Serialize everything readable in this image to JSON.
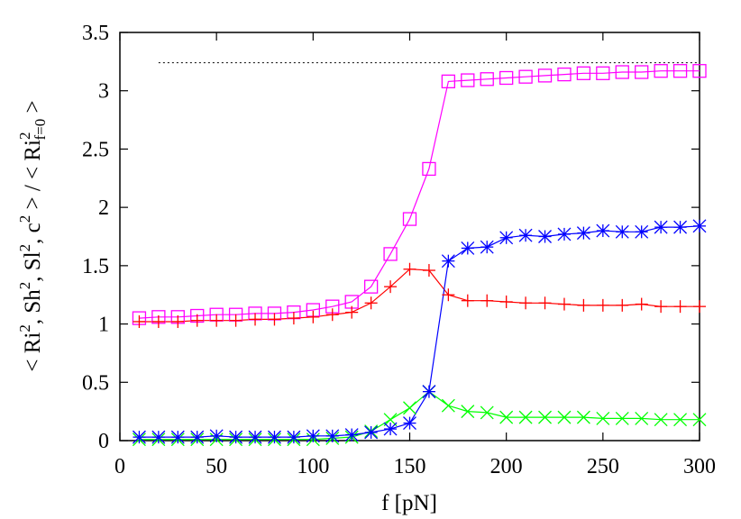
{
  "chart_data": {
    "type": "line",
    "title": "",
    "xlabel": "f [pN]",
    "ylabel": "< Ri², Sh², Sl², c² > / < Ri²f=0 >",
    "ylabel_parts": {
      "open": "< Ri",
      "sep1": ", Sh",
      "sep2": ", Sl",
      "sep3": ", c",
      "mid": " > / < Ri",
      "sub": "f=0",
      "close": " >",
      "sup": "2"
    },
    "xlim": [
      0,
      300
    ],
    "ylim": [
      0,
      3.5
    ],
    "xticks": [
      0,
      50,
      100,
      150,
      200,
      250,
      300
    ],
    "yticks": [
      0,
      0.5,
      1,
      1.5,
      2,
      2.5,
      3,
      3.5
    ],
    "xtick_labels": [
      "0",
      "50",
      "100",
      "150",
      "200",
      "250",
      "300"
    ],
    "ytick_labels": [
      "0",
      "0.5",
      "1",
      "1.5",
      "2",
      "2.5",
      "3",
      "3.5"
    ],
    "grid": false,
    "legend": "none",
    "reference_line": {
      "y": 3.24,
      "style": "dotted",
      "color": "#000000"
    },
    "x": [
      10,
      20,
      30,
      40,
      50,
      60,
      70,
      80,
      90,
      100,
      110,
      120,
      130,
      140,
      150,
      160,
      170,
      180,
      190,
      200,
      210,
      220,
      230,
      240,
      250,
      260,
      270,
      280,
      290,
      300
    ],
    "series": [
      {
        "marker": "square",
        "color": "#ff00ff",
        "values": [
          1.05,
          1.06,
          1.06,
          1.07,
          1.08,
          1.08,
          1.09,
          1.09,
          1.1,
          1.12,
          1.15,
          1.19,
          1.32,
          1.6,
          1.9,
          2.33,
          3.08,
          3.09,
          3.1,
          3.11,
          3.12,
          3.13,
          3.14,
          3.15,
          3.15,
          3.16,
          3.16,
          3.17,
          3.17,
          3.17
        ]
      },
      {
        "marker": "plus",
        "color": "#ff0000",
        "values": [
          1.02,
          1.02,
          1.02,
          1.03,
          1.03,
          1.03,
          1.04,
          1.04,
          1.05,
          1.06,
          1.08,
          1.1,
          1.18,
          1.32,
          1.47,
          1.46,
          1.25,
          1.2,
          1.2,
          1.19,
          1.18,
          1.18,
          1.17,
          1.16,
          1.16,
          1.16,
          1.17,
          1.15,
          1.15,
          1.15
        ]
      },
      {
        "marker": "cross",
        "color": "#00ff00",
        "values": [
          0.01,
          0.01,
          0.01,
          0.01,
          0.01,
          0.01,
          0.01,
          0.01,
          0.01,
          0.01,
          0.02,
          0.03,
          0.08,
          0.18,
          0.28,
          0.42,
          0.3,
          0.25,
          0.24,
          0.2,
          0.2,
          0.2,
          0.2,
          0.2,
          0.19,
          0.19,
          0.19,
          0.18,
          0.18,
          0.18
        ]
      },
      {
        "marker": "asterisk",
        "color": "#0000ff",
        "values": [
          0.03,
          0.03,
          0.03,
          0.03,
          0.04,
          0.03,
          0.03,
          0.03,
          0.03,
          0.04,
          0.04,
          0.05,
          0.07,
          0.1,
          0.15,
          0.42,
          1.54,
          1.65,
          1.66,
          1.74,
          1.76,
          1.75,
          1.77,
          1.78,
          1.8,
          1.79,
          1.79,
          1.83,
          1.83,
          1.84
        ]
      }
    ]
  }
}
